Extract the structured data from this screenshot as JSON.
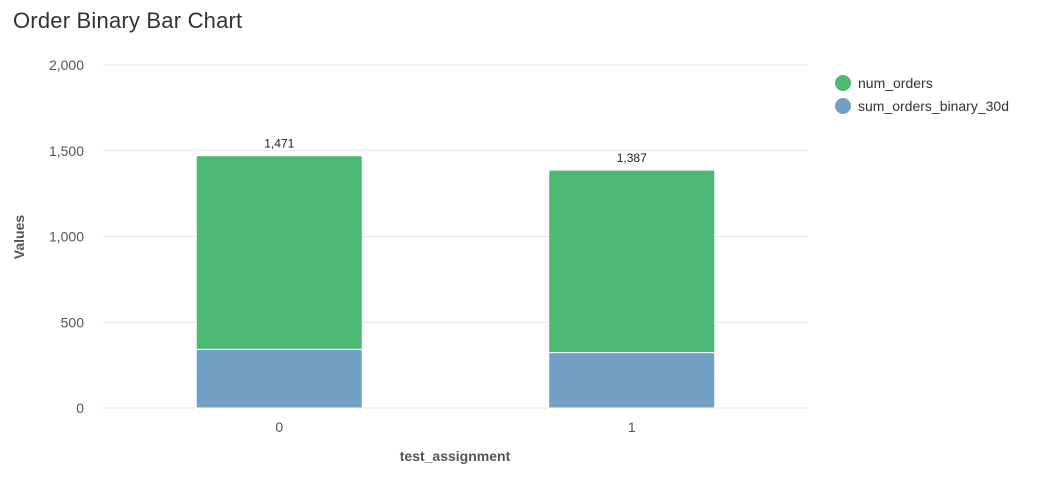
{
  "chart_data": {
    "type": "bar",
    "stacked": true,
    "title": "Order Binary Bar Chart",
    "xlabel": "test_assignment",
    "ylabel": "Values",
    "categories": [
      "0",
      "1"
    ],
    "ylim": [
      0,
      2000
    ],
    "yticks": [
      0,
      500,
      1000,
      1500,
      2000
    ],
    "ytick_labels": [
      "0",
      "500",
      "1,000",
      "1,500",
      "2,000"
    ],
    "grid": true,
    "legend_position": "top-right",
    "series": [
      {
        "name": "sum_orders_binary_30d",
        "values": [
          342,
          323
        ],
        "color": "#729fc4"
      },
      {
        "name": "num_orders",
        "values": [
          1129,
          1064
        ],
        "color": "#4cb874"
      }
    ],
    "legend_order": [
      "num_orders",
      "sum_orders_binary_30d"
    ],
    "totals": [
      1471,
      1387
    ],
    "total_labels": [
      "1,471",
      "1,387"
    ]
  }
}
